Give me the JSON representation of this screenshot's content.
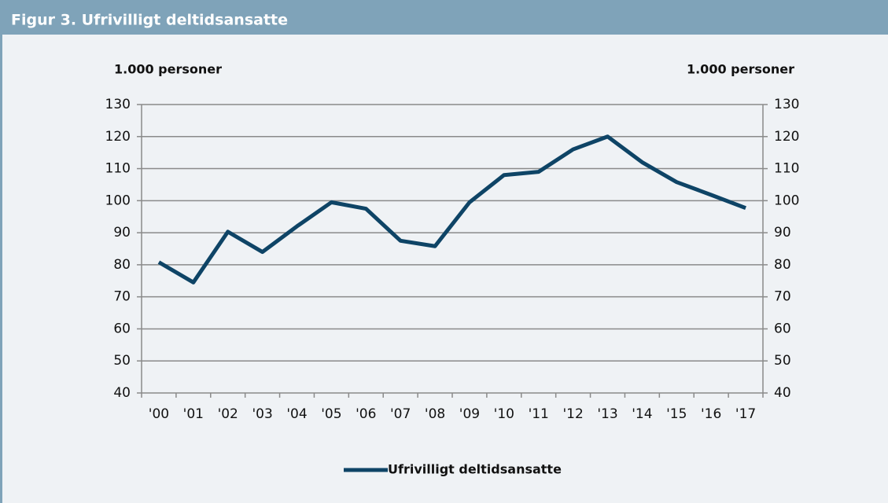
{
  "chart_data": {
    "type": "line",
    "title": "Figur 3. Ufrivilligt deltidsansatte",
    "y_label": "1.000 personer",
    "y2_label": "1.000 personer",
    "categories": [
      "'00",
      "'01",
      "'02",
      "'03",
      "'04",
      "'05",
      "'06",
      "'07",
      "'08",
      "'09",
      "'10",
      "'11",
      "'12",
      "'13",
      "'14",
      "'15",
      "'16",
      "'17"
    ],
    "series": [
      {
        "name": "Ufrivilligt deltidsansatte",
        "color": "#0e4466",
        "values": [
          80.8,
          74.5,
          90.3,
          84,
          92,
          99.5,
          97.5,
          87.5,
          85.8,
          99.5,
          108,
          109,
          116,
          120,
          112,
          105.8,
          101.8,
          97.7
        ]
      }
    ],
    "ylim": [
      40,
      130
    ],
    "yticks": [
      40,
      50,
      60,
      70,
      80,
      90,
      100,
      110,
      120,
      130
    ],
    "y2lim": [
      40,
      130
    ],
    "y2ticks": [
      40,
      50,
      60,
      70,
      80,
      90,
      100,
      110,
      120,
      130
    ],
    "grid": true,
    "legend": "bottom"
  }
}
